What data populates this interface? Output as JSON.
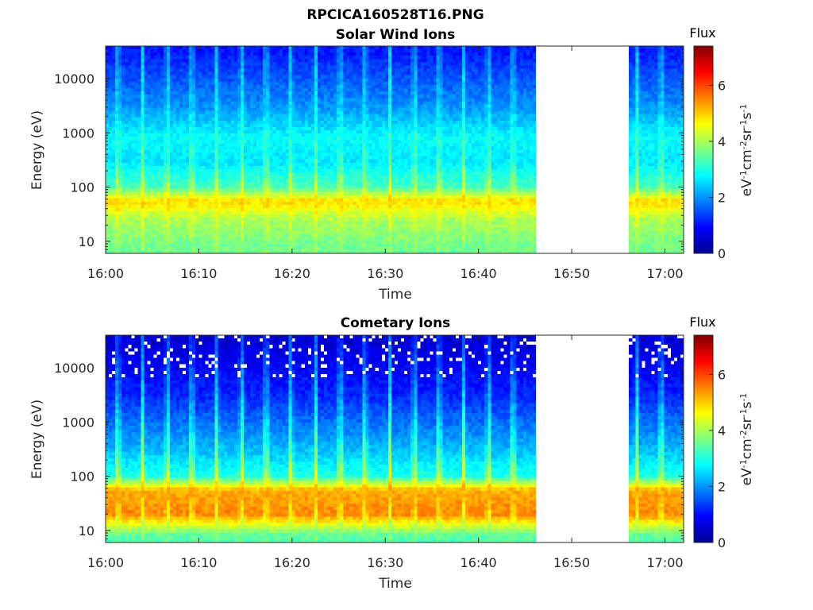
{
  "figure": {
    "title": "RPCICA160528T16.PNG"
  },
  "colorbar": {
    "title": "Flux",
    "label": "eV-1cm-2sr-1s-1",
    "ticks": [
      "0",
      "2",
      "4",
      "6"
    ]
  },
  "chart_data": [
    {
      "type": "heatmap",
      "title": "Solar Wind Ions",
      "xlabel": "Time",
      "ylabel": "Energy (eV)",
      "x_ticks": [
        "16:00",
        "16:10",
        "16:20",
        "16:30",
        "16:40",
        "16:50",
        "17:00"
      ],
      "x_range": [
        "16:00",
        "17:02"
      ],
      "y_scale": "log",
      "y_ticks": [
        "10",
        "100",
        "1000",
        "10000"
      ],
      "y_range": [
        6,
        40000
      ],
      "data_gap": [
        "16:46",
        "16:56"
      ],
      "color_range": [
        0,
        7.4
      ],
      "colormap": "jet",
      "sweep_period_min": 2.65,
      "spectrum_between_sweeps": [
        {
          "energy_eV": 8,
          "flux": 3.6
        },
        {
          "energy_eV": 25,
          "flux": 4.0
        },
        {
          "energy_eV": 55,
          "flux": 4.9
        },
        {
          "energy_eV": 100,
          "flux": 3.3
        },
        {
          "energy_eV": 300,
          "flux": 2.6
        },
        {
          "energy_eV": 800,
          "flux": 2.8
        },
        {
          "energy_eV": 3000,
          "flux": 2.0
        },
        {
          "energy_eV": 30000,
          "flux": 1.1
        }
      ],
      "spectrum_at_sweep_peaks": [
        {
          "energy_eV": 8,
          "flux": 3.8
        },
        {
          "energy_eV": 55,
          "flux": 5.0
        },
        {
          "energy_eV": 300,
          "flux": 3.5
        },
        {
          "energy_eV": 3000,
          "flux": 2.8
        },
        {
          "energy_eV": 30000,
          "flux": 2.4
        }
      ]
    },
    {
      "type": "heatmap",
      "title": "Cometary Ions",
      "xlabel": "Time",
      "ylabel": "Energy (eV)",
      "x_ticks": [
        "16:00",
        "16:10",
        "16:20",
        "16:30",
        "16:40",
        "16:50",
        "17:00"
      ],
      "x_range": [
        "16:00",
        "17:02"
      ],
      "y_scale": "log",
      "y_ticks": [
        "10",
        "100",
        "1000",
        "10000"
      ],
      "y_range": [
        6,
        40000
      ],
      "data_gap": [
        "16:46",
        "16:56"
      ],
      "color_range": [
        0,
        7.4
      ],
      "colormap": "jet",
      "sweep_period_min": 2.65,
      "spectrum_between_sweeps": [
        {
          "energy_eV": 8,
          "flux": 3.4
        },
        {
          "energy_eV": 20,
          "flux": 5.5
        },
        {
          "energy_eV": 55,
          "flux": 5.2
        },
        {
          "energy_eV": 100,
          "flux": 3.0
        },
        {
          "energy_eV": 300,
          "flux": 2.3
        },
        {
          "energy_eV": 3000,
          "flux": 1.2
        },
        {
          "energy_eV": 30000,
          "flux": 0.6
        }
      ],
      "spectrum_at_sweep_peaks": [
        {
          "energy_eV": 8,
          "flux": 3.6
        },
        {
          "energy_eV": 55,
          "flux": 5.3
        },
        {
          "energy_eV": 300,
          "flux": 3.8
        },
        {
          "energy_eV": 3000,
          "flux": 2.6
        },
        {
          "energy_eV": 30000,
          "flux": 1.8
        }
      ]
    }
  ]
}
